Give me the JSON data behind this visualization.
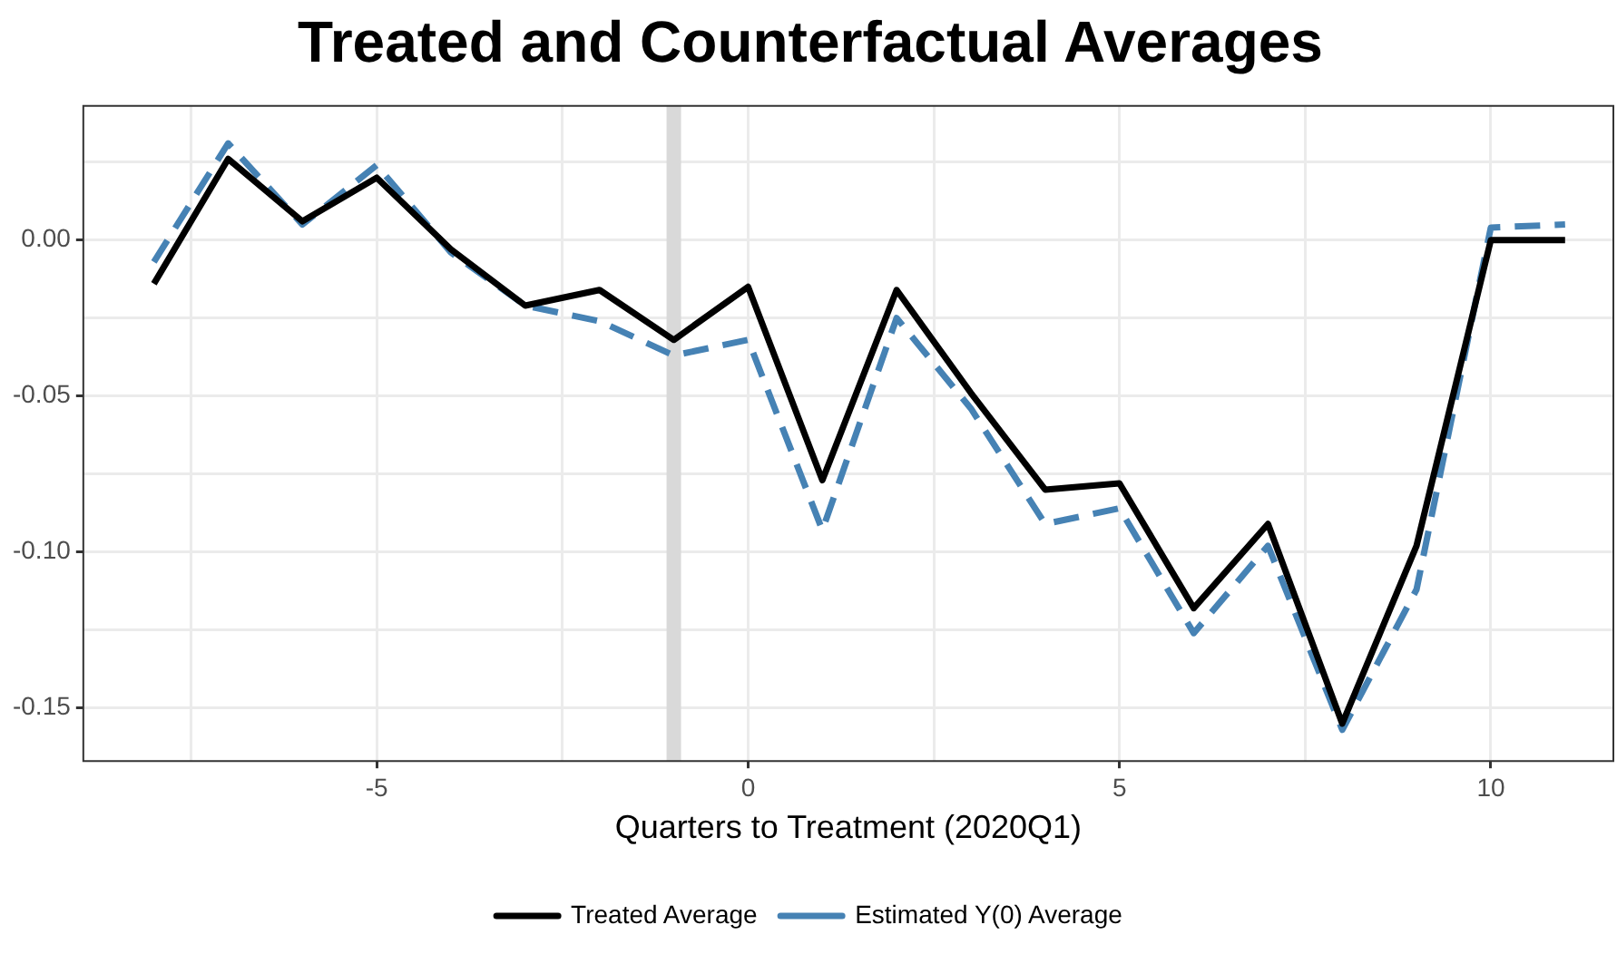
{
  "chart_data": {
    "type": "line",
    "title": "Treated and Counterfactual Averages",
    "xlabel": "Quarters to Treatment (2020Q1)",
    "x": [
      -8,
      -7,
      -6,
      -5,
      -4,
      -3,
      -2,
      -1,
      0,
      1,
      2,
      3,
      4,
      5,
      6,
      7,
      8,
      9,
      10,
      11
    ],
    "series": [
      {
        "name": "Treated Average",
        "color": "#000000",
        "line_style": "solid",
        "values": [
          -0.014,
          0.026,
          0.006,
          0.02,
          -0.003,
          -0.021,
          -0.016,
          -0.032,
          -0.015,
          -0.077,
          -0.016,
          -0.049,
          -0.08,
          -0.078,
          -0.118,
          -0.091,
          -0.155,
          -0.098,
          0.0,
          0.0
        ]
      },
      {
        "name": "Estimated Y(0) Average",
        "color": "#4682b4",
        "line_style": "dashed",
        "values": [
          -0.007,
          0.031,
          0.005,
          0.024,
          -0.004,
          -0.021,
          -0.026,
          -0.037,
          -0.032,
          -0.093,
          -0.025,
          -0.054,
          -0.091,
          -0.086,
          -0.126,
          -0.098,
          -0.157,
          -0.112,
          0.004,
          0.005
        ]
      }
    ],
    "xlim": [
      -8.95,
      11.65
    ],
    "ylim": [
      -0.167,
      0.043
    ],
    "xticks": [
      {
        "value": -7.5,
        "label": null
      },
      {
        "value": -5,
        "label": "-5"
      },
      {
        "value": -2.5,
        "label": null
      },
      {
        "value": 0,
        "label": "0"
      },
      {
        "value": 2.5,
        "label": null
      },
      {
        "value": 5,
        "label": "5"
      },
      {
        "value": 7.5,
        "label": null
      },
      {
        "value": 10,
        "label": "10"
      }
    ],
    "yticks": [
      {
        "value": -0.15,
        "label": "-0.15"
      },
      {
        "value": -0.125,
        "label": null
      },
      {
        "value": -0.1,
        "label": "-0.10"
      },
      {
        "value": -0.075,
        "label": null
      },
      {
        "value": -0.05,
        "label": "-0.05"
      },
      {
        "value": -0.025,
        "label": null
      },
      {
        "value": 0,
        "label": "0.00"
      },
      {
        "value": 0.025,
        "label": null
      }
    ],
    "ref_lines": [
      {
        "axis": "x",
        "value": -1,
        "color": "#d9d9d9"
      }
    ],
    "grid": true,
    "legend": "bottom"
  }
}
